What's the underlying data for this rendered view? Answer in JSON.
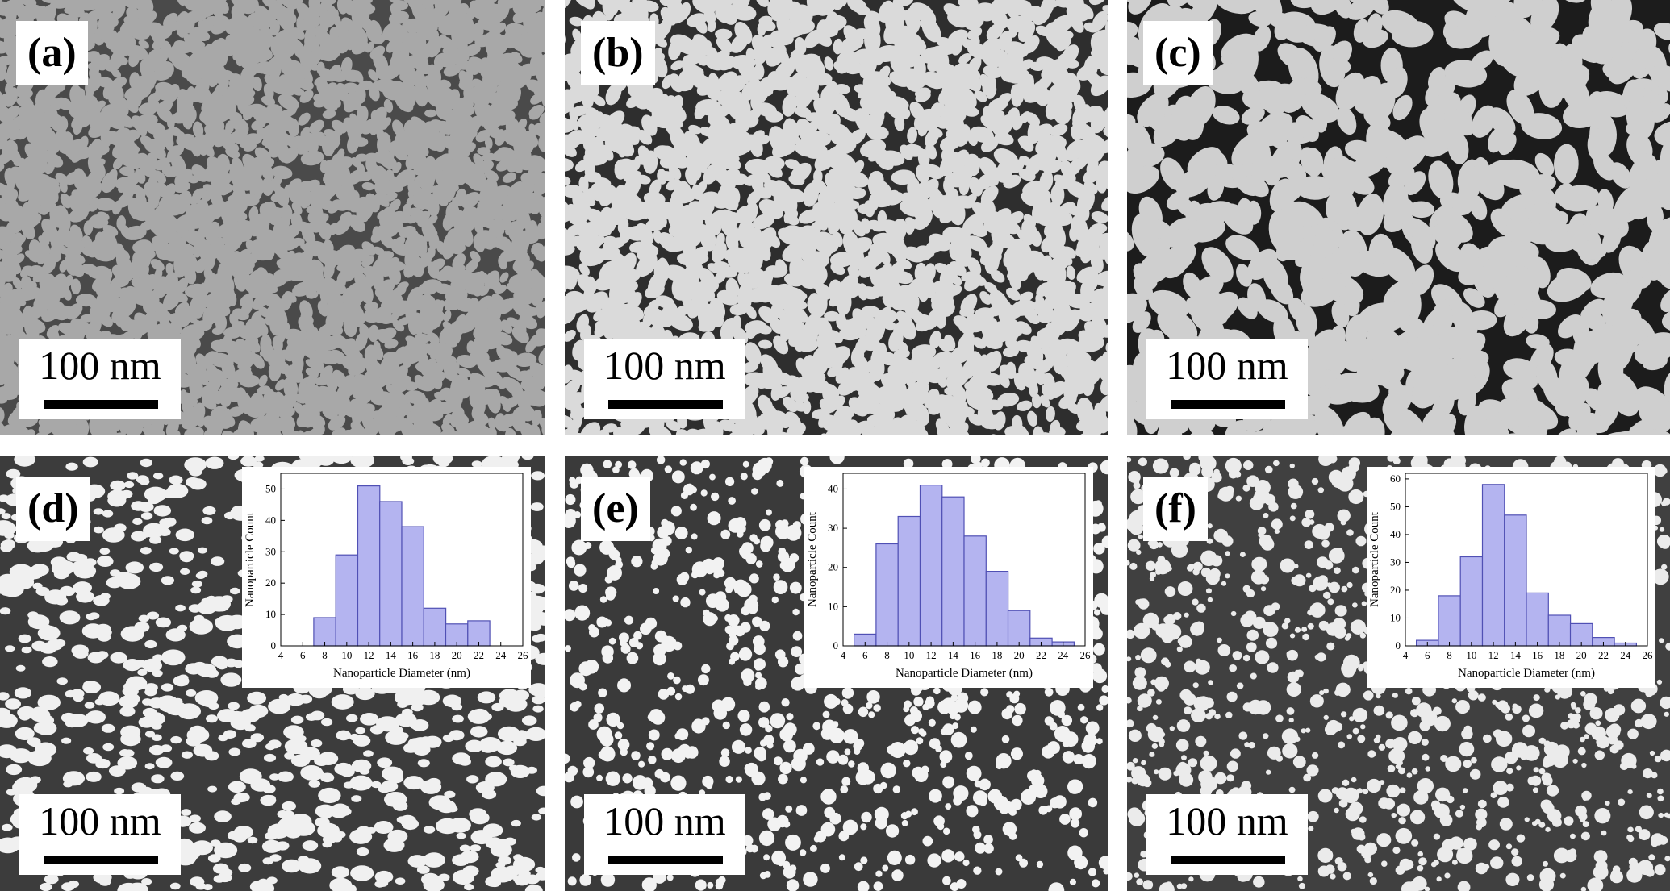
{
  "panels": [
    {
      "id": "a",
      "label": "(a)",
      "scale_label": "100 nm",
      "texture": "maze-fine"
    },
    {
      "id": "b",
      "label": "(b)",
      "scale_label": "100 nm",
      "texture": "maze-bright"
    },
    {
      "id": "c",
      "label": "(c)",
      "scale_label": "100 nm",
      "texture": "maze-coarse"
    },
    {
      "id": "d",
      "label": "(d)",
      "scale_label": "100 nm",
      "texture": "particles-elongated"
    },
    {
      "id": "e",
      "label": "(e)",
      "scale_label": "100 nm",
      "texture": "particles-round"
    },
    {
      "id": "f",
      "label": "(f)",
      "scale_label": "100 nm",
      "texture": "particles-round-dense"
    }
  ],
  "colors": {
    "histogram_fill": "#b4b4f0",
    "histogram_stroke": "#5050b4",
    "sem_dark": "#3a3a3a",
    "sem_bright": "#e8e8e8"
  },
  "chart_data": [
    {
      "panel": "d",
      "type": "bar",
      "xlabel": "Nanoparticle Diameter (nm)",
      "ylabel": "Nanoparticle Count",
      "bin_width": 2,
      "x": [
        8,
        10,
        12,
        14,
        16,
        18,
        20,
        22
      ],
      "values": [
        9,
        29,
        51,
        46,
        38,
        12,
        7,
        8
      ],
      "xlim": [
        4,
        26
      ],
      "ylim": [
        0,
        55
      ],
      "xticks": [
        4,
        6,
        8,
        10,
        12,
        14,
        16,
        18,
        20,
        22,
        24,
        26
      ],
      "yticks": [
        0,
        10,
        20,
        30,
        40,
        50
      ]
    },
    {
      "panel": "e",
      "type": "bar",
      "xlabel": "Nanoparticle Diameter (nm)",
      "ylabel": "Nanoparticle Count",
      "bin_width": 2,
      "x": [
        6,
        8,
        10,
        12,
        14,
        16,
        18,
        20,
        22,
        24
      ],
      "values": [
        3,
        26,
        33,
        41,
        38,
        28,
        19,
        9,
        2,
        1
      ],
      "xlim": [
        4,
        26
      ],
      "ylim": [
        0,
        44
      ],
      "xticks": [
        4,
        6,
        8,
        10,
        12,
        14,
        16,
        18,
        20,
        22,
        24,
        26
      ],
      "yticks": [
        0,
        10,
        20,
        30,
        40
      ]
    },
    {
      "panel": "f",
      "type": "bar",
      "xlabel": "Nanoparticle Diameter (nm)",
      "ylabel": "Nanoparticle Count",
      "bin_width": 2,
      "x": [
        6,
        8,
        10,
        12,
        14,
        16,
        18,
        20,
        22,
        24
      ],
      "values": [
        2,
        18,
        32,
        58,
        47,
        19,
        11,
        8,
        3,
        1
      ],
      "xlim": [
        4,
        26
      ],
      "ylim": [
        0,
        62
      ],
      "xticks": [
        4,
        6,
        8,
        10,
        12,
        14,
        16,
        18,
        20,
        22,
        24,
        26
      ],
      "yticks": [
        0,
        10,
        20,
        30,
        40,
        50,
        60
      ]
    }
  ]
}
